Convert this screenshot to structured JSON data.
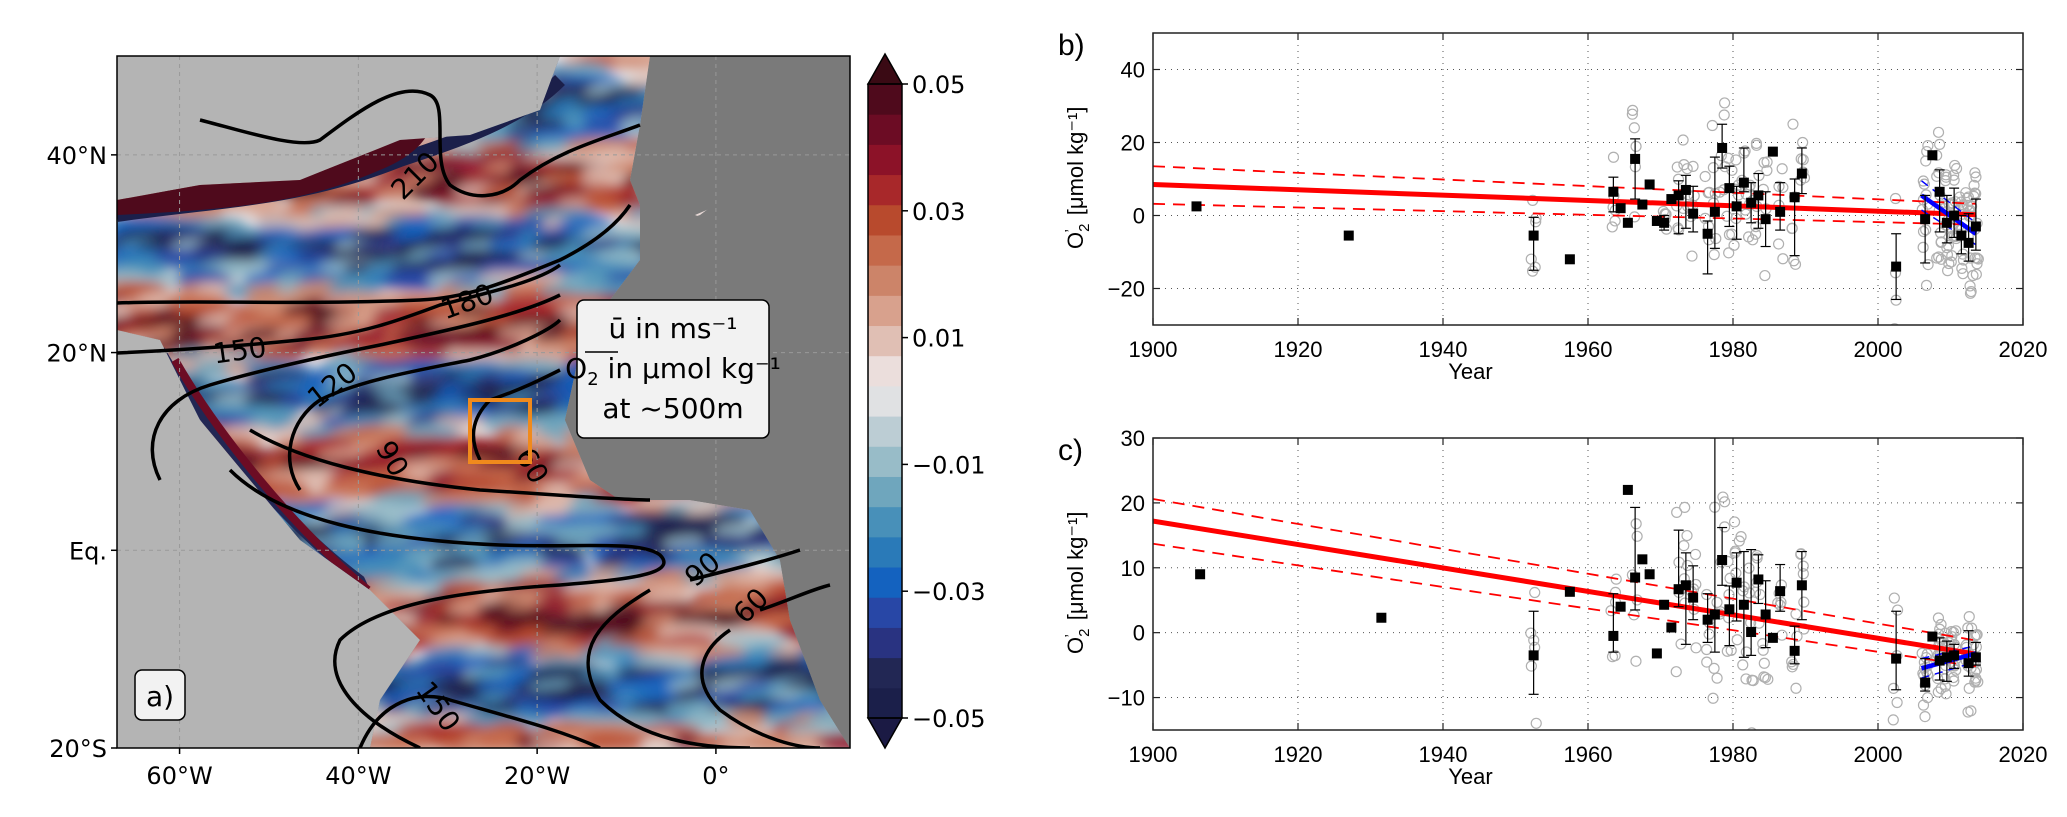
{
  "chart_data": [
    {
      "panel": "a)",
      "type": "heatmap",
      "title": "",
      "legend_box": {
        "line1": "ū in ms⁻¹",
        "line2_base": "O",
        "line2_sub": "2",
        "line2_rest": " in μmol kg⁻¹",
        "line3": "at ~500m"
      },
      "lon_range": [
        -67,
        15
      ],
      "lat_range": [
        -20,
        50
      ],
      "xticks": [
        {
          "value": -60,
          "label": "60°W"
        },
        {
          "value": -40,
          "label": "40°W"
        },
        {
          "value": -20,
          "label": "20°W"
        },
        {
          "value": 0,
          "label": "0°"
        }
      ],
      "yticks": [
        {
          "value": 40,
          "label": "40°N"
        },
        {
          "value": 20,
          "label": "20°N"
        },
        {
          "value": 0,
          "label": "Eq."
        },
        {
          "value": -20,
          "label": "20°S"
        }
      ],
      "colorbar": {
        "min": -0.05,
        "max": 0.05,
        "ticks": [
          {
            "value": 0.05,
            "label": "0.05"
          },
          {
            "value": 0.03,
            "label": "0.03"
          },
          {
            "value": 0.01,
            "label": "0.01"
          },
          {
            "value": -0.01,
            "label": "−0.01"
          },
          {
            "value": -0.03,
            "label": "−0.03"
          },
          {
            "value": -0.05,
            "label": "−0.05"
          }
        ],
        "colors": [
          "#1b1f4a",
          "#222754",
          "#293381",
          "#2847a6",
          "#1462bf",
          "#2a7ab8",
          "#4890b9",
          "#6fa6bd",
          "#98bcc8",
          "#bccdd4",
          "#e0e1e3",
          "#ebdedc",
          "#e0bfb4",
          "#d8a18d",
          "#cc8469",
          "#c5694a",
          "#b84a2d",
          "#a8282a",
          "#8c1228",
          "#6c0c24",
          "#4f0a1c"
        ],
        "extend": "both"
      },
      "contours": [
        {
          "label": "210"
        },
        {
          "label": "180"
        },
        {
          "label": "150"
        },
        {
          "label": "120"
        },
        {
          "label": "90"
        },
        {
          "label": "60"
        },
        {
          "label": "90"
        },
        {
          "label": "60"
        },
        {
          "label": "150"
        }
      ],
      "highlight_box_color": "#f08a1c",
      "land_color": "#7a7a7a",
      "shelf_color": "#b4b4b4"
    },
    {
      "panel": "b)",
      "type": "scatter",
      "title": "",
      "xlabel": "Year",
      "ylabel_base": "O",
      "ylabel_sub": "2",
      "ylabel_prime": "’",
      "ylabel_units": "[μmol kg⁻¹]",
      "xlim": [
        1900,
        2020
      ],
      "ylim": [
        -30,
        50
      ],
      "xticks": [
        1900,
        1920,
        1940,
        1960,
        1980,
        2000,
        2020
      ],
      "yticks": [
        -20,
        0,
        20,
        40
      ],
      "grid": true,
      "trend": {
        "x": [
          1900,
          2013.5
        ],
        "y": [
          8.5,
          0.2
        ],
        "color": "#ff0000"
      },
      "trend_ci_upper": {
        "x": [
          1900,
          2013.5
        ],
        "y": [
          13.5,
          3.2
        ]
      },
      "trend_ci_lower": {
        "x": [
          1900,
          2013.5
        ],
        "y": [
          3.2,
          -2.5
        ]
      },
      "recent_trend": {
        "x": [
          2006,
          2013.5
        ],
        "y": [
          5.5,
          -5.0
        ],
        "color": "#0000ff"
      },
      "recent_ci_upper": {
        "x": [
          2006,
          2013.5
        ],
        "y": [
          9.5,
          -2.0
        ]
      },
      "recent_ci_lower": {
        "x": [
          2006,
          2013.5
        ],
        "y": [
          1.5,
          -8.0
        ]
      },
      "annual_means": [
        {
          "x": 1906,
          "y": 2.5
        },
        {
          "x": 1927,
          "y": -5.5
        },
        {
          "x": 1952.5,
          "y": -5.5,
          "lo": -15,
          "hi": -0.5
        },
        {
          "x": 1957.5,
          "y": -12
        },
        {
          "x": 1963.5,
          "y": 6.5,
          "lo": 1,
          "hi": 10.5
        },
        {
          "x": 1964.5,
          "y": 2
        },
        {
          "x": 1965.5,
          "y": -2
        },
        {
          "x": 1966.5,
          "y": 15.5,
          "lo": 4.5,
          "hi": 21
        },
        {
          "x": 1967.5,
          "y": 3
        },
        {
          "x": 1968.5,
          "y": 8.5
        },
        {
          "x": 1969.5,
          "y": -1.5
        },
        {
          "x": 1970.5,
          "y": -2,
          "lo": -4,
          "hi": 0
        },
        {
          "x": 1971.5,
          "y": 4.5
        },
        {
          "x": 1972.5,
          "y": 5.5,
          "lo": -5,
          "hi": 9.5
        },
        {
          "x": 1973.5,
          "y": 7,
          "lo": -3.5,
          "hi": 11
        },
        {
          "x": 1974.5,
          "y": 0.5,
          "lo": -4.5,
          "hi": 8
        },
        {
          "x": 1976.5,
          "y": -5,
          "lo": -16,
          "hi": -1.5
        },
        {
          "x": 1977.5,
          "y": 1,
          "lo": -9,
          "hi": 16
        },
        {
          "x": 1978.5,
          "y": 18.5,
          "lo": 13,
          "hi": 25
        },
        {
          "x": 1979.5,
          "y": 7.5,
          "lo": -3,
          "hi": 13.5
        },
        {
          "x": 1980.5,
          "y": 2.5,
          "lo": -6.5,
          "hi": 8
        },
        {
          "x": 1981.5,
          "y": 9,
          "lo": 6.5,
          "hi": 18.5
        },
        {
          "x": 1982.5,
          "y": 3.5,
          "lo": -2,
          "hi": 9
        },
        {
          "x": 1983.5,
          "y": 5.5,
          "lo": -3.5,
          "hi": 11.5
        },
        {
          "x": 1984.5,
          "y": -1,
          "lo": -8.5,
          "hi": 6.5
        },
        {
          "x": 1985.5,
          "y": 17.5
        },
        {
          "x": 1986.5,
          "y": 1,
          "lo": -4,
          "hi": 9
        },
        {
          "x": 1988.5,
          "y": 5,
          "lo": -11,
          "hi": 10
        },
        {
          "x": 1989.5,
          "y": 11.5,
          "lo": 6,
          "hi": 18.5
        },
        {
          "x": 2002.5,
          "y": -14,
          "lo": -23,
          "hi": -5
        },
        {
          "x": 2006.5,
          "y": -1,
          "lo": -13,
          "hi": 5.5
        },
        {
          "x": 2007.5,
          "y": 16.5
        },
        {
          "x": 2008.5,
          "y": 6.5,
          "lo": -4.5,
          "hi": 12.5
        },
        {
          "x": 2009.5,
          "y": -2,
          "lo": -7.5,
          "hi": 5.5
        },
        {
          "x": 2010.5,
          "y": 0,
          "lo": -6,
          "hi": 7.5
        },
        {
          "x": 2011.5,
          "y": -5.5,
          "lo": -10.5,
          "hi": 0
        },
        {
          "x": 2012.5,
          "y": -7.5,
          "lo": -12.5,
          "hi": 0.5
        },
        {
          "x": 2013.5,
          "y": -3,
          "lo": -9.5,
          "hi": 4.5
        }
      ],
      "individual_points_color": "#b0b0b0"
    },
    {
      "panel": "c)",
      "type": "scatter",
      "title": "",
      "xlabel": "Year",
      "ylabel_base": "O",
      "ylabel_sub": "2",
      "ylabel_prime": "’",
      "ylabel_units": "[μmol kg⁻¹]",
      "xlim": [
        1900,
        2020
      ],
      "ylim": [
        -15,
        30
      ],
      "xticks": [
        1900,
        1920,
        1940,
        1960,
        1980,
        2000,
        2020
      ],
      "yticks": [
        -10,
        0,
        10,
        20,
        30
      ],
      "grid": true,
      "trend": {
        "x": [
          1900,
          2013.5
        ],
        "y": [
          17.2,
          -3.3
        ],
        "color": "#ff0000"
      },
      "trend_ci_upper": {
        "x": [
          1900,
          2013.5
        ],
        "y": [
          20.6,
          -1.2
        ]
      },
      "trend_ci_lower": {
        "x": [
          1900,
          2013.5
        ],
        "y": [
          13.7,
          -5.2
        ]
      },
      "recent_trend": {
        "x": [
          2006,
          2013.5
        ],
        "y": [
          -5.5,
          -3.2
        ],
        "color": "#0000ff"
      },
      "recent_ci_upper": {
        "x": [
          2006,
          2013.5
        ],
        "y": [
          -4,
          -2
        ]
      },
      "recent_ci_lower": {
        "x": [
          2006,
          2013.5
        ],
        "y": [
          -7,
          -4.5
        ]
      },
      "annual_means": [
        {
          "x": 1906.5,
          "y": 9
        },
        {
          "x": 1931.5,
          "y": 2.3
        },
        {
          "x": 1952.5,
          "y": -3.5,
          "lo": -9.5,
          "hi": 3.3
        },
        {
          "x": 1957.5,
          "y": 6.3
        },
        {
          "x": 1963.5,
          "y": -0.5,
          "lo": -3,
          "hi": 6
        },
        {
          "x": 1964.5,
          "y": 4
        },
        {
          "x": 1965.5,
          "y": 22
        },
        {
          "x": 1966.5,
          "y": 8.5,
          "lo": 3.5,
          "hi": 19.3
        },
        {
          "x": 1967.5,
          "y": 11.3
        },
        {
          "x": 1968.5,
          "y": 9
        },
        {
          "x": 1969.5,
          "y": -3.2
        },
        {
          "x": 1970.5,
          "y": 4.3
        },
        {
          "x": 1971.5,
          "y": 0.8
        },
        {
          "x": 1972.5,
          "y": 6.7,
          "lo": 4,
          "hi": 15.8
        },
        {
          "x": 1973.5,
          "y": 7.3,
          "lo": -1.8,
          "hi": 12.3
        },
        {
          "x": 1974.5,
          "y": 5.4,
          "lo": 2,
          "hi": 10.3
        },
        {
          "x": 1976.5,
          "y": 2,
          "lo": -1.5,
          "hi": 6
        },
        {
          "x": 1977.5,
          "y": 2.8,
          "lo": -3,
          "hi": 30
        },
        {
          "x": 1978.5,
          "y": 11.2,
          "lo": 7.3,
          "hi": 16.2
        },
        {
          "x": 1979.5,
          "y": 3.6,
          "lo": -2,
          "hi": 7.2
        },
        {
          "x": 1980.5,
          "y": 7.7,
          "lo": 1.8,
          "hi": 12.3
        },
        {
          "x": 1981.5,
          "y": 4.3,
          "lo": -3.8,
          "hi": 12.5
        },
        {
          "x": 1982.5,
          "y": 0.1,
          "lo": -3.5,
          "hi": 12.8
        },
        {
          "x": 1983.5,
          "y": 8.2,
          "lo": 4.5,
          "hi": 12
        },
        {
          "x": 1984.5,
          "y": 2.8,
          "lo": -2.3,
          "hi": 8
        },
        {
          "x": 1985.5,
          "y": -0.8
        },
        {
          "x": 1986.5,
          "y": 6.4,
          "lo": 3.3,
          "hi": 10.5
        },
        {
          "x": 1988.5,
          "y": -2.8,
          "lo": -4.8,
          "hi": 1
        },
        {
          "x": 1989.5,
          "y": 7.3,
          "lo": 2,
          "hi": 12.5
        },
        {
          "x": 2002.5,
          "y": -4,
          "lo": -8.8,
          "hi": 3.3
        },
        {
          "x": 2006.5,
          "y": -7.7,
          "lo": -9,
          "hi": -4
        },
        {
          "x": 2007.5,
          "y": -0.6
        },
        {
          "x": 2008.5,
          "y": -4.3,
          "lo": -7.3,
          "hi": -0.8
        },
        {
          "x": 2009.5,
          "y": -3.8,
          "lo": -7.5,
          "hi": -1.3
        },
        {
          "x": 2010.5,
          "y": -3.5,
          "lo": -5.5,
          "hi": -1.8
        },
        {
          "x": 2012.5,
          "y": -4.7,
          "lo": -6.7,
          "hi": 0.3
        },
        {
          "x": 2013.5,
          "y": -3.8,
          "lo": -5,
          "hi": -1.5
        }
      ],
      "individual_points_color": "#b0b0b0"
    }
  ]
}
